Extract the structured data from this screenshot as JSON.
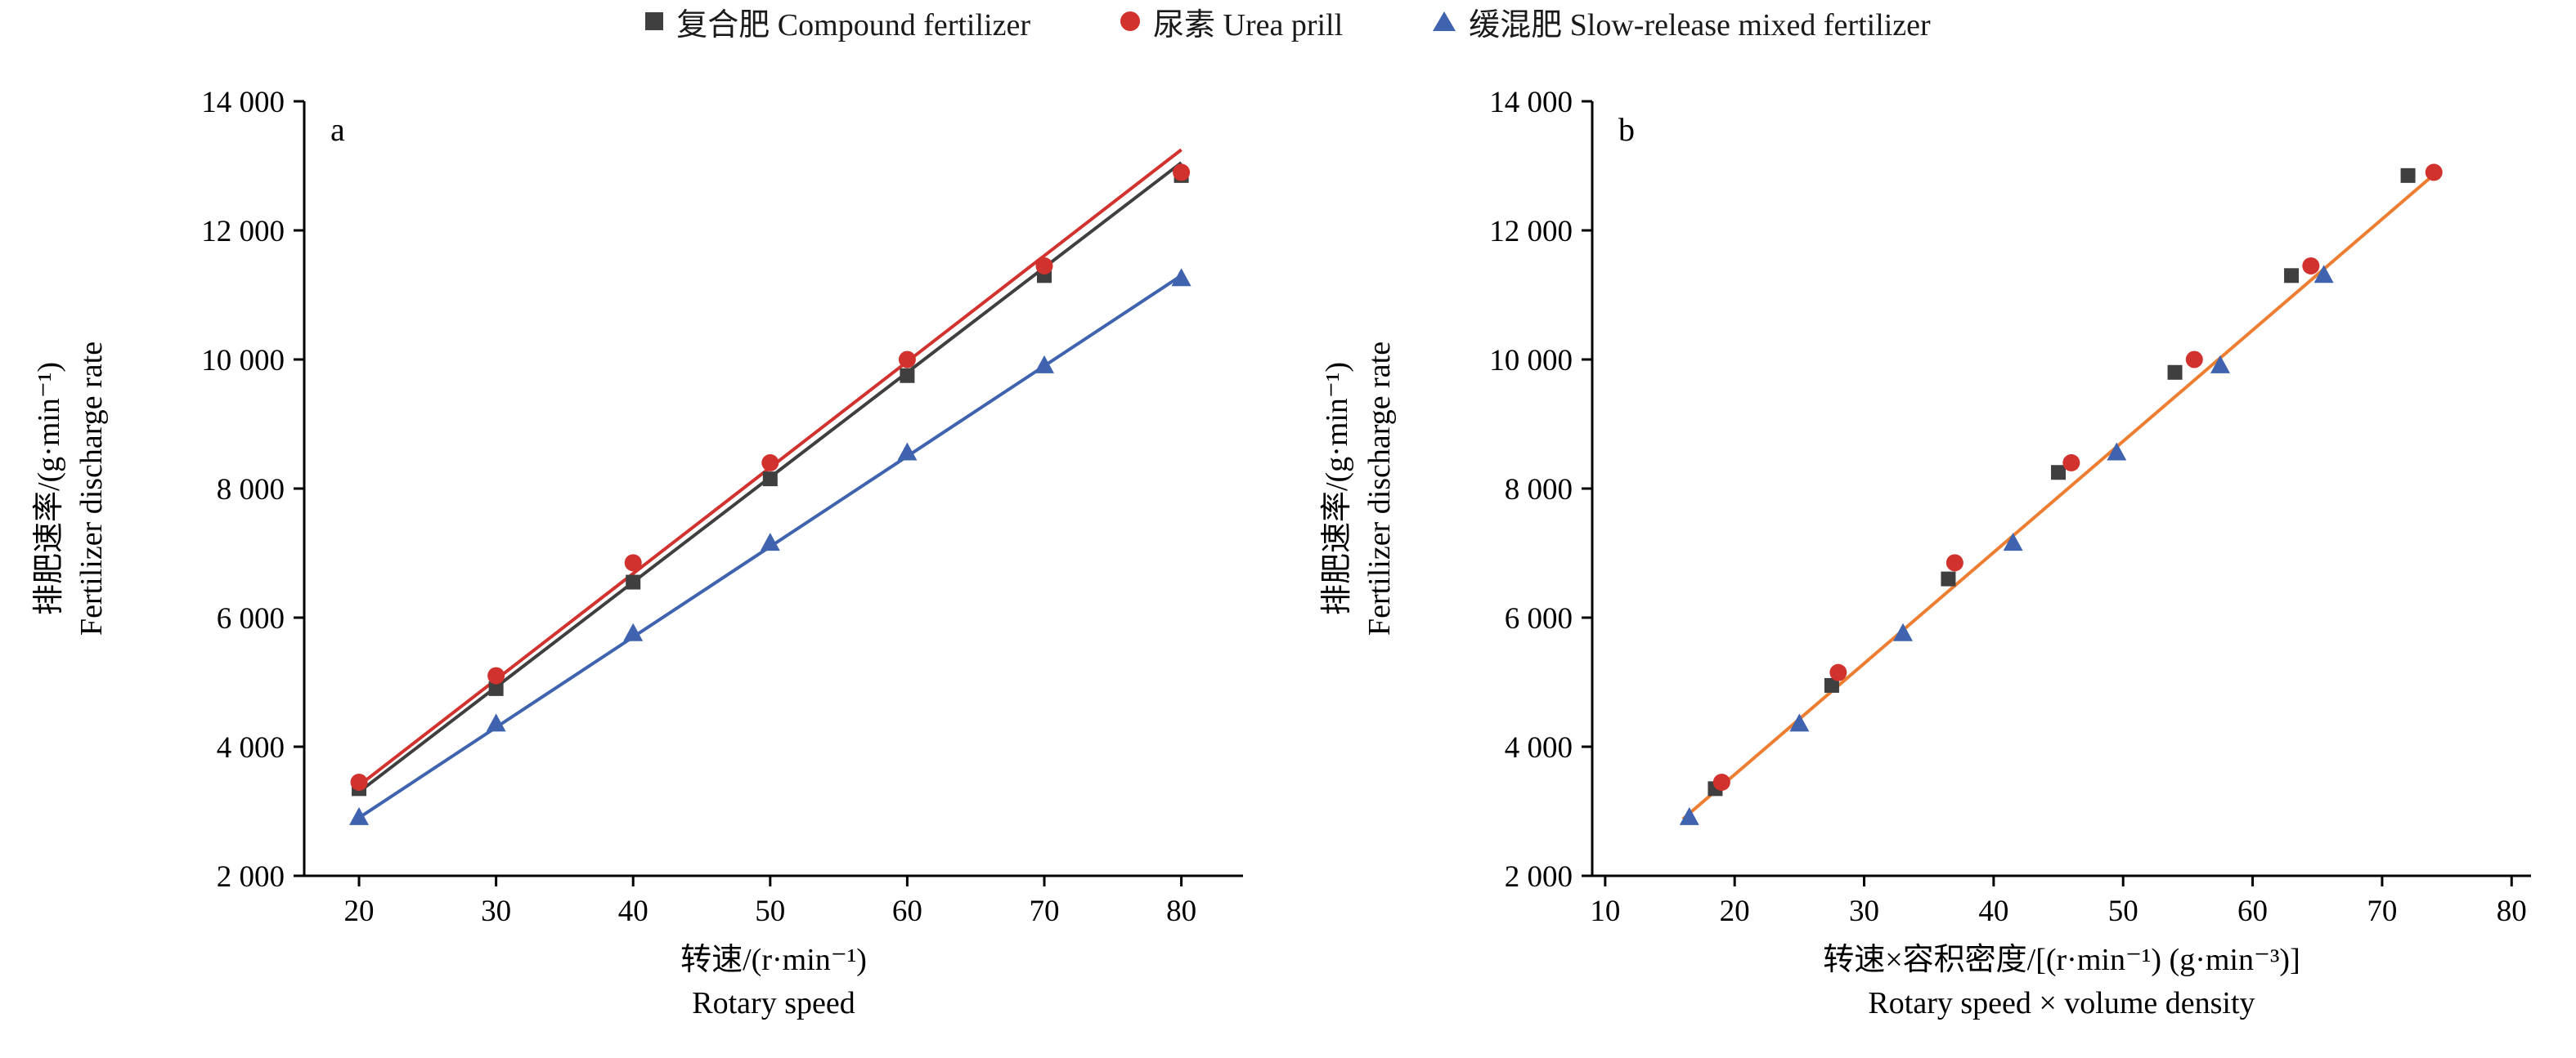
{
  "figure": {
    "background": "#ffffff",
    "axis_color": "#000000",
    "legend": [
      {
        "label": "复合肥 Compound fertilizer",
        "marker": "square",
        "color": "#3f3f3f"
      },
      {
        "label": "尿素 Urea prill",
        "marker": "circle",
        "color": "#d2322d"
      },
      {
        "label": "缓混肥 Slow-release mixed fertilizer",
        "marker": "triangle",
        "color": "#3f63ae"
      }
    ]
  },
  "chart_data": [
    {
      "panel": "a",
      "type": "scatter",
      "xlabel_zh": "转速/(r·min⁻¹)",
      "xlabel_en": "Rotary speed",
      "ylabel_zh": "排肥速率/(g·min⁻¹)",
      "ylabel_en": "Fertilizer discharge rate",
      "xaxis_range": [
        16,
        84.5
      ],
      "yaxis_range": [
        2000,
        14000
      ],
      "xticks": [
        20,
        30,
        40,
        50,
        60,
        70,
        80
      ],
      "yticks": [
        2000,
        4000,
        6000,
        8000,
        10000,
        12000,
        14000
      ],
      "grid": false,
      "series": [
        {
          "name": "复合肥 Compound fertilizer",
          "marker": "square",
          "color": "#3f3f3f",
          "x": [
            20,
            30,
            40,
            50,
            60,
            70,
            80
          ],
          "y": [
            3350,
            4900,
            6550,
            8150,
            9750,
            11300,
            12850
          ],
          "fit_line": {
            "color": "#3f3f3f",
            "points": [
              [
                20,
                3300
              ],
              [
                80,
                13050
              ]
            ]
          }
        },
        {
          "name": "尿素 Urea prill",
          "marker": "circle",
          "color": "#d2322d",
          "x": [
            20,
            30,
            40,
            50,
            60,
            70,
            80
          ],
          "y": [
            3450,
            5100,
            6850,
            8400,
            10000,
            11450,
            12900
          ],
          "fit_line": {
            "color": "#d2322d",
            "points": [
              [
                20,
                3400
              ],
              [
                80,
                13250
              ]
            ]
          }
        },
        {
          "name": "缓混肥 Slow-release mixed fertilizer",
          "marker": "triangle",
          "color": "#3f63ae",
          "x": [
            20,
            30,
            40,
            50,
            60,
            70,
            80
          ],
          "y": [
            2900,
            4350,
            5750,
            7150,
            8550,
            9900,
            11250
          ],
          "fit_line": {
            "color": "#3f63ae",
            "points": [
              [
                20,
                2900
              ],
              [
                80,
                11300
              ]
            ]
          }
        }
      ]
    },
    {
      "panel": "b",
      "type": "scatter",
      "xlabel_zh": "转速×容积密度/[(r·min⁻¹) (g·min⁻³)]",
      "xlabel_en": "Rotary speed × volume density",
      "ylabel_zh": "排肥速率/(g·min⁻¹)",
      "ylabel_en": "Fertilizer discharge rate",
      "xaxis_range": [
        9,
        81.5
      ],
      "yaxis_range": [
        2000,
        14000
      ],
      "xticks": [
        10,
        20,
        30,
        40,
        50,
        60,
        70,
        80
      ],
      "yticks": [
        2000,
        4000,
        6000,
        8000,
        10000,
        12000,
        14000
      ],
      "grid": false,
      "fit_line": {
        "color": "#ed7d31",
        "points": [
          [
            16,
            2880
          ],
          [
            74.5,
            12950
          ]
        ]
      },
      "series": [
        {
          "name": "复合肥 Compound fertilizer",
          "marker": "square",
          "color": "#3f3f3f",
          "x": [
            18.5,
            27.5,
            36.5,
            45,
            54,
            63,
            72
          ],
          "y": [
            3350,
            4950,
            6600,
            8250,
            9800,
            11300,
            12850
          ]
        },
        {
          "name": "尿素 Urea prill",
          "marker": "circle",
          "color": "#d2322d",
          "x": [
            19,
            28,
            37,
            46,
            55.5,
            64.5,
            74
          ],
          "y": [
            3450,
            5150,
            6850,
            8400,
            10000,
            11450,
            12900
          ]
        },
        {
          "name": "缓混肥 Slow-release mixed fertilizer",
          "marker": "triangle",
          "color": "#3f63ae",
          "x": [
            16.5,
            25,
            33,
            41.5,
            49.5,
            57.5,
            65.5
          ],
          "y": [
            2900,
            4350,
            5750,
            7150,
            8550,
            9900,
            11300
          ]
        }
      ]
    }
  ]
}
